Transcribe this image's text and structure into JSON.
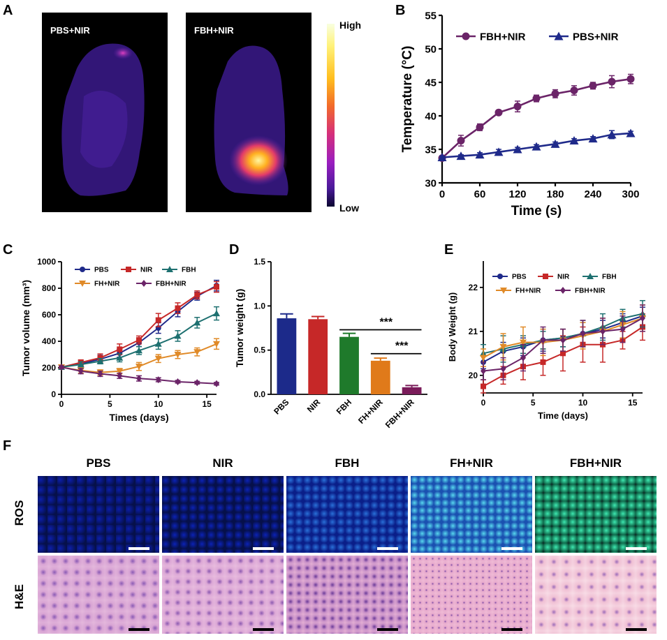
{
  "panel_labels": {
    "a": "A",
    "b": "B",
    "c": "C",
    "d": "D",
    "e": "E",
    "f": "F"
  },
  "panel_a": {
    "images": [
      {
        "title": "PBS+NIR",
        "hotspot": "weak"
      },
      {
        "title": "FBH+NIR",
        "hotspot": "strong"
      }
    ],
    "colorbar": {
      "high": "High",
      "low": "Low"
    }
  },
  "panel_f": {
    "columns": [
      "PBS",
      "NIR",
      "FBH",
      "FH+NIR",
      "FBH+NIR"
    ],
    "rows": [
      "ROS",
      "H&E"
    ]
  },
  "chart_data": [
    {
      "id": "B",
      "type": "line",
      "xlabel": "Time (s)",
      "ylabel": "Temperature (°C)",
      "xlim": [
        0,
        300
      ],
      "ylim": [
        30,
        55
      ],
      "xticks": [
        0,
        60,
        120,
        180,
        240,
        300
      ],
      "yticks": [
        30,
        35,
        40,
        45,
        50,
        55
      ],
      "x": [
        0,
        30,
        60,
        90,
        120,
        150,
        180,
        210,
        240,
        270,
        300
      ],
      "series": [
        {
          "name": "FBH+NIR",
          "color": "#6b2468",
          "marker": "circle",
          "values": [
            33.7,
            36.3,
            38.3,
            40.5,
            41.4,
            42.6,
            43.3,
            43.8,
            44.5,
            45.1,
            45.5
          ],
          "errors": [
            0.3,
            0.8,
            0.5,
            0.3,
            0.8,
            0.5,
            0.6,
            0.7,
            0.5,
            0.9,
            0.7
          ]
        },
        {
          "name": "PBS+NIR",
          "color": "#1f2a8a",
          "marker": "triangle",
          "values": [
            33.8,
            34.0,
            34.2,
            34.6,
            35.0,
            35.4,
            35.8,
            36.3,
            36.6,
            37.2,
            37.4
          ],
          "errors": [
            0.2,
            0.2,
            0.3,
            0.4,
            0.3,
            0.3,
            0.3,
            0.3,
            0.3,
            0.6,
            0.3
          ]
        }
      ]
    },
    {
      "id": "C",
      "type": "line",
      "xlabel": "Times (days)",
      "ylabel": "Tumor volume (mm³)",
      "xlim": [
        0,
        16
      ],
      "ylim": [
        0,
        1000
      ],
      "xticks": [
        0,
        5,
        10,
        15
      ],
      "yticks": [
        0,
        200,
        400,
        600,
        800,
        1000
      ],
      "x": [
        0,
        2,
        4,
        6,
        8,
        10,
        12,
        14,
        16
      ],
      "series": [
        {
          "name": "PBS",
          "color": "#1f2a8a",
          "marker": "circle",
          "values": [
            205,
            230,
            265,
            310,
            390,
            500,
            625,
            740,
            820
          ],
          "errors": [
            10,
            20,
            30,
            30,
            30,
            40,
            40,
            30,
            40
          ]
        },
        {
          "name": "NIR",
          "color": "#c62828",
          "marker": "square",
          "values": [
            205,
            240,
            275,
            340,
            410,
            560,
            650,
            750,
            810
          ],
          "errors": [
            10,
            20,
            30,
            40,
            30,
            50,
            40,
            30,
            40
          ]
        },
        {
          "name": "FBH",
          "color": "#1e7070",
          "marker": "triangle",
          "values": [
            205,
            225,
            250,
            275,
            330,
            380,
            440,
            540,
            610
          ],
          "errors": [
            10,
            20,
            20,
            30,
            30,
            40,
            40,
            40,
            50
          ]
        },
        {
          "name": "FH+NIR",
          "color": "#e08a28",
          "marker": "triangle-down",
          "values": [
            205,
            180,
            165,
            175,
            210,
            270,
            300,
            320,
            380
          ],
          "errors": [
            10,
            20,
            20,
            20,
            30,
            30,
            30,
            30,
            40
          ]
        },
        {
          "name": "FBH+NIR",
          "color": "#6b2468",
          "marker": "diamond",
          "values": [
            205,
            175,
            155,
            140,
            120,
            110,
            95,
            88,
            80
          ],
          "errors": [
            10,
            20,
            20,
            20,
            20,
            15,
            10,
            10,
            10
          ]
        }
      ]
    },
    {
      "id": "D",
      "type": "bar",
      "ylabel": "Tumor weight (g)",
      "ylim": [
        0,
        1.5
      ],
      "yticks": [
        "0.0",
        "0.5",
        "1.0",
        "1.5"
      ],
      "categories": [
        "PBS",
        "NIR",
        "FBH",
        "FH+NIR",
        "FBH+NIR"
      ],
      "values": [
        0.86,
        0.85,
        0.65,
        0.38,
        0.08
      ],
      "errors": [
        0.05,
        0.03,
        0.04,
        0.03,
        0.02
      ],
      "colors": [
        "#1c2a8a",
        "#c62828",
        "#1f7a2b",
        "#e07a1a",
        "#7a1c5a"
      ],
      "significance": [
        {
          "from": "FBH",
          "to": "FBH+NIR",
          "label": "***",
          "y": 0.73
        },
        {
          "from": "FH+NIR",
          "to": "FBH+NIR",
          "label": "***",
          "y": 0.46
        }
      ]
    },
    {
      "id": "E",
      "type": "line",
      "xlabel": "Time (days)",
      "ylabel": "Body Weight (g)",
      "xlim": [
        0,
        16
      ],
      "ylim": [
        19.6,
        22.6
      ],
      "xticks": [
        0,
        5,
        10,
        15
      ],
      "yticks": [
        20,
        21,
        22
      ],
      "x": [
        0,
        2,
        4,
        6,
        8,
        10,
        12,
        14,
        16
      ],
      "series": [
        {
          "name": "PBS",
          "color": "#1f2a8a",
          "marker": "circle",
          "values": [
            20.3,
            20.55,
            20.65,
            20.8,
            20.85,
            20.95,
            21.05,
            21.2,
            21.35
          ],
          "errors": [
            0.15,
            0.2,
            0.2,
            0.25,
            0.2,
            0.25,
            0.2,
            0.2,
            0.2
          ]
        },
        {
          "name": "NIR",
          "color": "#c62828",
          "marker": "square",
          "values": [
            19.75,
            20.0,
            20.2,
            20.3,
            20.5,
            20.7,
            20.7,
            20.8,
            21.1
          ],
          "errors": [
            0.15,
            0.2,
            0.3,
            0.3,
            0.4,
            0.4,
            0.4,
            0.2,
            0.3
          ]
        },
        {
          "name": "FBH",
          "color": "#1e7070",
          "marker": "triangle",
          "values": [
            20.5,
            20.6,
            20.7,
            20.8,
            20.85,
            20.95,
            21.1,
            21.3,
            21.4
          ],
          "errors": [
            0.2,
            0.3,
            0.2,
            0.2,
            0.2,
            0.3,
            0.3,
            0.2,
            0.3
          ]
        },
        {
          "name": "FH+NIR",
          "color": "#e08a28",
          "marker": "triangle-down",
          "values": [
            20.4,
            20.65,
            20.75,
            20.75,
            20.8,
            20.9,
            21.0,
            21.15,
            21.3
          ],
          "errors": [
            0.2,
            0.3,
            0.35,
            0.3,
            0.25,
            0.3,
            0.3,
            0.3,
            0.3
          ]
        },
        {
          "name": "FBH+NIR",
          "color": "#6b2468",
          "marker": "diamond",
          "values": [
            20.1,
            20.15,
            20.4,
            20.8,
            20.8,
            20.95,
            21.0,
            21.05,
            21.3
          ],
          "errors": [
            0.2,
            0.25,
            0.3,
            0.3,
            0.25,
            0.3,
            0.3,
            0.3,
            0.3
          ]
        }
      ]
    }
  ]
}
